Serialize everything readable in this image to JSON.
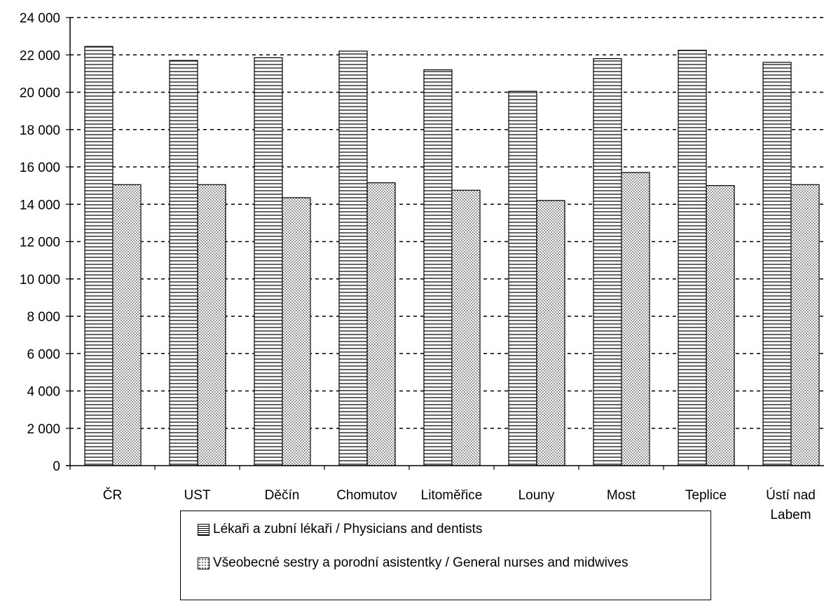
{
  "chart_data": {
    "type": "bar",
    "title": "",
    "xlabel": "",
    "ylabel": "",
    "categories": [
      "ČR",
      "UST",
      "Děčín",
      "Chomutov",
      "Litoměřice",
      "Louny",
      "Most",
      "Teplice",
      "Ústí nad Labem"
    ],
    "series": [
      {
        "name": "Lékaři a zubní lékaři / Physicians and dentists",
        "values": [
          22450,
          21700,
          21850,
          22200,
          21200,
          20050,
          21800,
          22250,
          21600
        ],
        "pattern": "horizontal-lines"
      },
      {
        "name": "Všeobecné sestry a porodní asistentky / General nurses and midwives",
        "values": [
          15050,
          15050,
          14350,
          15150,
          14750,
          14200,
          15700,
          15000,
          15050
        ],
        "pattern": "dots"
      }
    ],
    "ylim": [
      0,
      24000
    ],
    "yticks": [
      0,
      2000,
      4000,
      6000,
      8000,
      10000,
      12000,
      14000,
      16000,
      18000,
      20000,
      22000,
      24000
    ],
    "ytick_labels": [
      "0",
      "2 000",
      "4 000",
      "6 000",
      "8 000",
      "10 000",
      "12 000",
      "14 000",
      "16 000",
      "18 000",
      "20 000",
      "22 000",
      "24 000"
    ],
    "grid": "horizontal-dotted",
    "legend_position": "bottom"
  },
  "colors": {
    "bar_fill": "#ffffff",
    "bar_stroke": "#000000",
    "grid": "#000000",
    "text": "#000000"
  }
}
